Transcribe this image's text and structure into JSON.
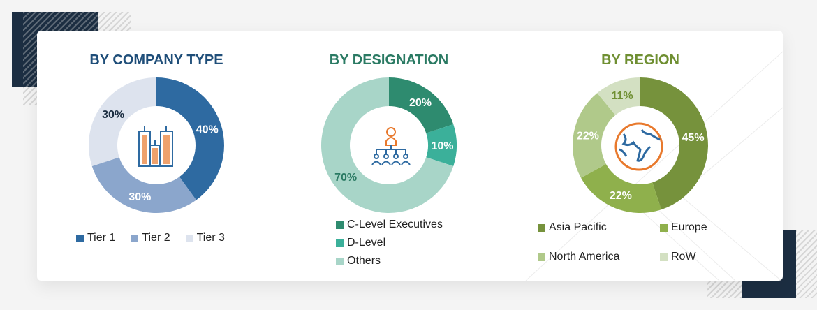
{
  "chart_data": [
    {
      "type": "pie",
      "title": "BY COMPANY TYPE",
      "title_color": "#1f4e79",
      "center_icon": "buildings-icon",
      "categories": [
        "Tier  1",
        "Tier  2",
        "Tier  3"
      ],
      "values": [
        40,
        30,
        30
      ],
      "labels": [
        "40%",
        "30%",
        "30%"
      ],
      "colors": [
        "#2e6aa1",
        "#8ba6cc",
        "#dde3ee"
      ],
      "label_colors": [
        "#ffffff",
        "#ffffff",
        "#1c2e42"
      ],
      "legend": "bottom"
    },
    {
      "type": "pie",
      "title": "BY DESIGNATION",
      "title_color": "#2a7a63",
      "center_icon": "org-hierarchy-icon",
      "categories": [
        "C-Level Executives",
        "D-Level",
        "Others"
      ],
      "values": [
        20,
        10,
        70
      ],
      "labels": [
        "20%",
        "10%",
        "70%"
      ],
      "colors": [
        "#2e8b6f",
        "#3bb09a",
        "#a8d5c8"
      ],
      "label_colors": [
        "#ffffff",
        "#ffffff",
        "#2a7a63"
      ],
      "legend": "bottom"
    },
    {
      "type": "pie",
      "title": "BY REGION",
      "title_color": "#6f8f32",
      "center_icon": "globe-icon",
      "categories": [
        "Asia Pacific",
        "Europe",
        "North America",
        "RoW"
      ],
      "values": [
        45,
        22,
        22,
        11
      ],
      "labels": [
        "45%",
        "22%",
        "22%",
        "11%"
      ],
      "colors": [
        "#76923c",
        "#8fb04c",
        "#b0c98a",
        "#d3e0c2"
      ],
      "label_colors": [
        "#ffffff",
        "#ffffff",
        "#ffffff",
        "#6f8f32"
      ],
      "legend": "bottom"
    }
  ]
}
